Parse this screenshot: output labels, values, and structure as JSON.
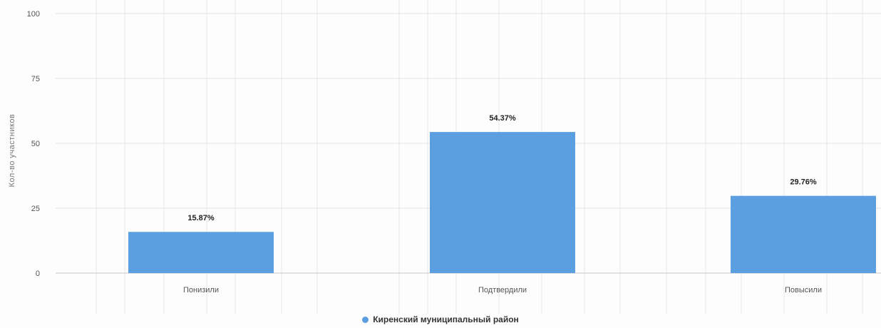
{
  "chart_data": {
    "type": "bar",
    "categories": [
      "Понизили",
      "Подтвердили",
      "Повысили"
    ],
    "series": [
      {
        "name": "Киренский муниципальный район",
        "values": [
          15.87,
          54.37,
          29.76
        ],
        "data_labels": [
          "15.87%",
          "54.37%",
          "29.76%"
        ],
        "color": "#5b9fe0"
      }
    ],
    "ylabel": "Кол-во участников",
    "xlabel": "",
    "ylim": [
      0,
      100
    ],
    "yticks": [
      "0",
      "25",
      "50",
      "75",
      "100"
    ],
    "grid": true,
    "legend_position": "bottom"
  }
}
